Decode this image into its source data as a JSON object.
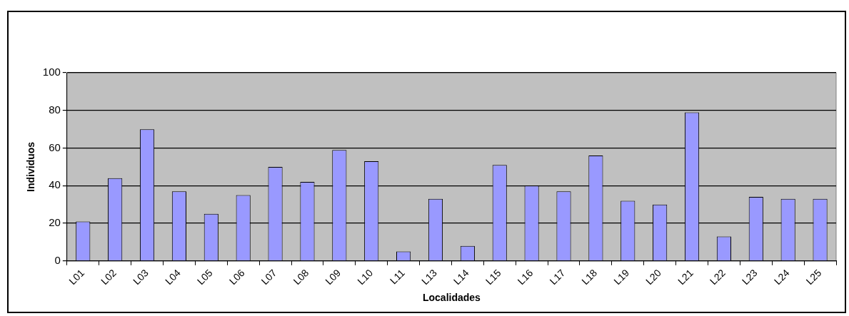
{
  "chart_data": {
    "type": "bar",
    "xlabel": "Localidades",
    "ylabel": "Individuos",
    "categories": [
      "L01",
      "L02",
      "L03",
      "L04",
      "L05",
      "L06",
      "L07",
      "L08",
      "L09",
      "L10",
      "L11",
      "L13",
      "L14",
      "L15",
      "L16",
      "L17",
      "L18",
      "L19",
      "L20",
      "L21",
      "L22",
      "L23",
      "L24",
      "L25"
    ],
    "values": [
      21,
      44,
      70,
      37,
      25,
      35,
      50,
      42,
      59,
      53,
      5,
      33,
      8,
      51,
      40,
      37,
      56,
      32,
      30,
      79,
      13,
      34,
      33,
      33
    ],
    "color": "#9999ff",
    "ylim": [
      0,
      100
    ],
    "yticks": [
      0,
      20,
      40,
      60,
      80,
      100
    ],
    "grid": "y",
    "legend": false
  }
}
